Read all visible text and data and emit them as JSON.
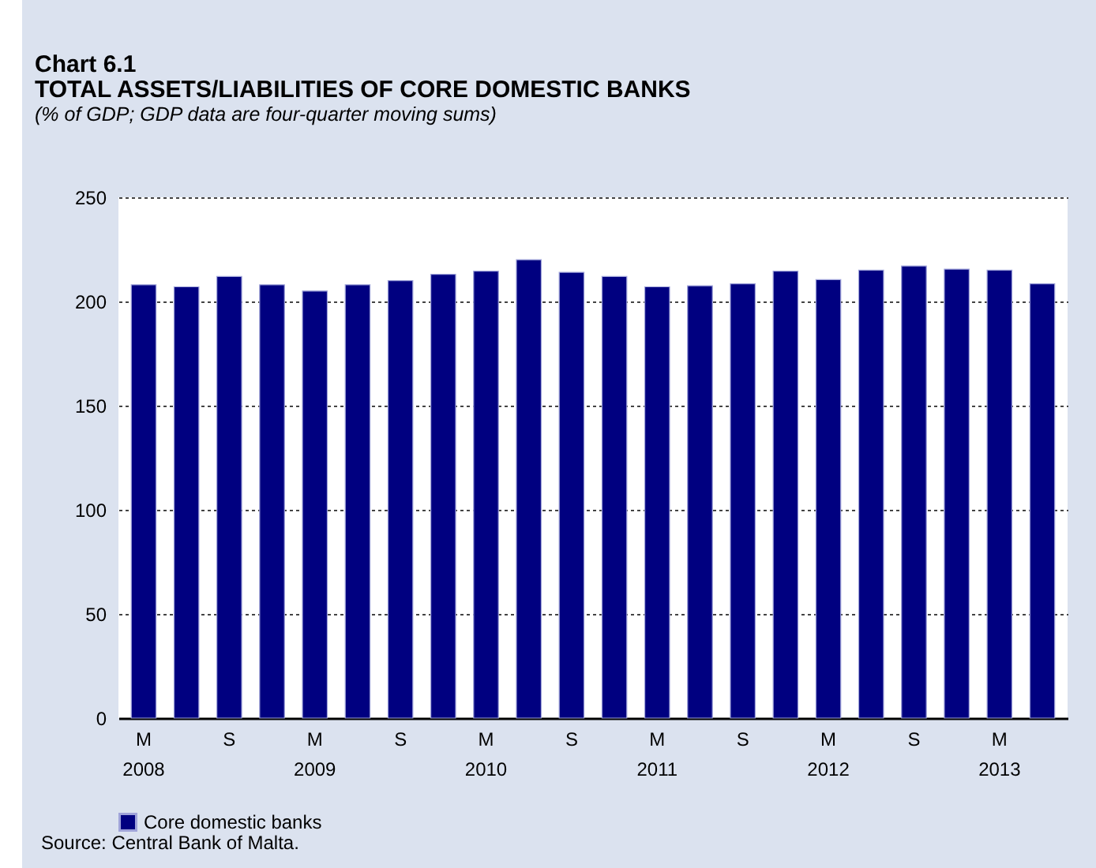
{
  "chart_data": {
    "type": "bar",
    "title": "Chart 6.1\nTOTAL ASSETS/LIABILITIES OF CORE DOMESTIC BANKS",
    "subtitle": "(% of GDP; GDP data are four-quarter moving sums)",
    "categories": [
      "M\n2008",
      null,
      "S",
      null,
      "M\n2009",
      null,
      "S",
      null,
      "M\n2010",
      null,
      "S",
      null,
      "M\n2011",
      null,
      "S",
      null,
      "M\n2012",
      null,
      "S",
      null,
      "M\n2013",
      null
    ],
    "series": [
      {
        "name": "Core domestic banks",
        "color": "#000080",
        "values": [
          208,
          207,
          212,
          208,
          205,
          208,
          210,
          213,
          214.5,
          220,
          214,
          212,
          207,
          207.5,
          208.5,
          214.5,
          210.5,
          215,
          217,
          215.5,
          215,
          208.5
        ]
      }
    ],
    "ylim": [
      0,
      250
    ],
    "yticks": [
      0,
      50,
      100,
      150,
      200,
      250
    ],
    "grid": "y",
    "legend": "bottom",
    "annotations": [
      "Source: Central Bank of Malta."
    ]
  }
}
